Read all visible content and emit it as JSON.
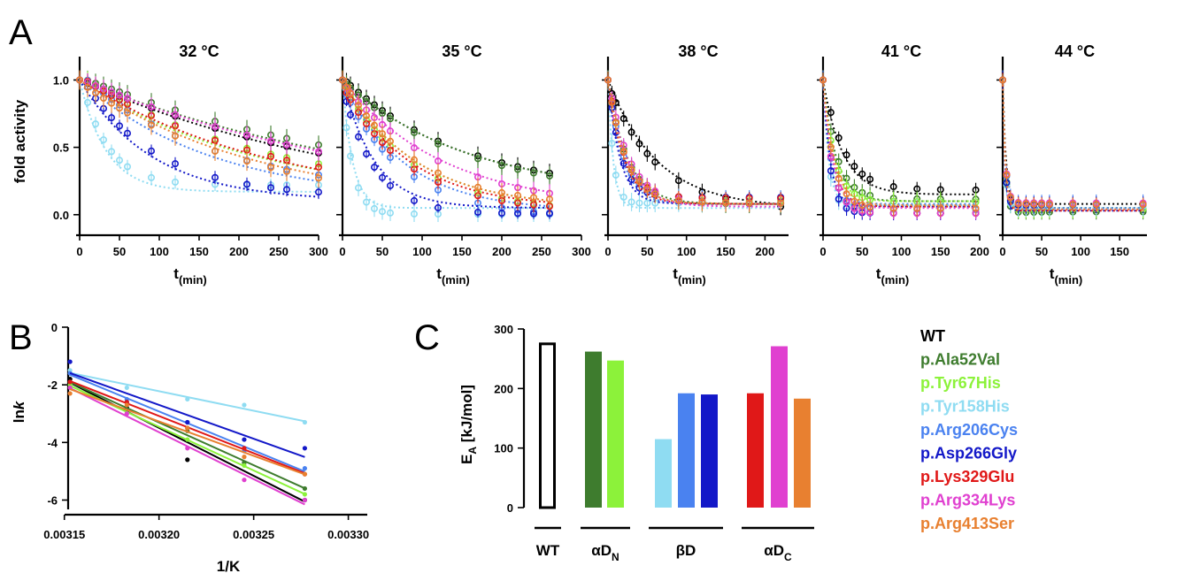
{
  "panel_letters": {
    "a": "A",
    "b": "B",
    "c": "C"
  },
  "legend": [
    {
      "name": "WT",
      "color": "#000000"
    },
    {
      "name": "p.Ala52Val",
      "color": "#3e7c2e"
    },
    {
      "name": "p.Tyr67His",
      "color": "#8cf23a"
    },
    {
      "name": "p.Tyr158His",
      "color": "#8fdcf2"
    },
    {
      "name": "p.Arg206Cys",
      "color": "#4a82f0"
    },
    {
      "name": "p.Asp266Gly",
      "color": "#1318c8"
    },
    {
      "name": "p.Lys329Glu",
      "color": "#e01818"
    },
    {
      "name": "p.Arg334Lys",
      "color": "#e040d0"
    },
    {
      "name": "p.Arg413Ser",
      "color": "#e88030"
    }
  ],
  "chart_data": [
    {
      "panel": "A",
      "type": "scatter",
      "ylabel": "fold activity",
      "xlabel_main": "t",
      "xlabel_sub": "(min)",
      "ylim": [
        -0.1,
        1.2
      ],
      "yticks": [
        0.0,
        0.5,
        1.0
      ],
      "ytick_labels": [
        "0.0",
        "0.5",
        "1.0"
      ],
      "subpanels": [
        {
          "title": "32 °C",
          "xlim": [
            0,
            300
          ],
          "xticks": [
            0,
            50,
            100,
            150,
            200,
            250,
            300
          ],
          "x": [
            0,
            10,
            20,
            30,
            40,
            50,
            60,
            90,
            120,
            170,
            210,
            240,
            260,
            300
          ],
          "fits": [
            {
              "plateau": 0.0,
              "k": 0.0027
            },
            {
              "plateau": 0.0,
              "k": 0.0024
            },
            {
              "plateau": 0.1,
              "k": 0.0045
            },
            {
              "plateau": 0.17,
              "k": 0.03
            },
            {
              "plateau": 0.1,
              "k": 0.006
            },
            {
              "plateau": 0.1,
              "k": 0.011
            },
            {
              "plateau": 0.05,
              "k": 0.004
            },
            {
              "plateau": 0.0,
              "k": 0.0025
            },
            {
              "plateau": 0.05,
              "k": 0.0045
            }
          ]
        },
        {
          "title": "35 °C",
          "xlim": [
            0,
            300
          ],
          "xticks": [
            0,
            50,
            100,
            150,
            200,
            250,
            300
          ],
          "x": [
            0,
            5,
            10,
            20,
            30,
            40,
            50,
            60,
            90,
            120,
            170,
            200,
            220,
            240,
            260
          ],
          "fits": [
            {
              "plateau": 0.15,
              "k": 0.0065
            },
            {
              "plateau": 0.15,
              "k": 0.0065
            },
            {
              "plateau": 0.05,
              "k": 0.011
            },
            {
              "plateau": 0.05,
              "k": 0.08
            },
            {
              "plateau": 0.03,
              "k": 0.013
            },
            {
              "plateau": 0.05,
              "k": 0.025
            },
            {
              "plateau": 0.05,
              "k": 0.012
            },
            {
              "plateau": 0.05,
              "k": 0.008
            },
            {
              "plateau": 0.05,
              "k": 0.011
            }
          ]
        },
        {
          "title": "38 °C",
          "xlim": [
            0,
            230
          ],
          "xticks": [
            0,
            50,
            100,
            150,
            200
          ],
          "x": [
            0,
            5,
            10,
            20,
            30,
            40,
            50,
            60,
            90,
            120,
            150,
            180,
            220
          ],
          "fits": [
            {
              "plateau": 0.05,
              "k": 0.016
            },
            {
              "plateau": 0.08,
              "k": 0.04
            },
            {
              "plateau": 0.08,
              "k": 0.045
            },
            {
              "plateau": 0.05,
              "k": 0.15
            },
            {
              "plateau": 0.08,
              "k": 0.055
            },
            {
              "plateau": 0.08,
              "k": 0.065
            },
            {
              "plateau": 0.08,
              "k": 0.05
            },
            {
              "plateau": 0.06,
              "k": 0.04
            },
            {
              "plateau": 0.08,
              "k": 0.045
            }
          ]
        },
        {
          "title": "41 °C",
          "xlim": [
            0,
            200
          ],
          "xticks": [
            0,
            50,
            100,
            150,
            200
          ],
          "x": [
            0,
            10,
            20,
            30,
            40,
            50,
            60,
            90,
            120,
            150,
            195
          ],
          "fits": [
            {
              "plateau": 0.15,
              "k": 0.04
            },
            {
              "plateau": 0.1,
              "k": 0.06
            },
            {
              "plateau": 0.1,
              "k": 0.07
            },
            {
              "plateau": 0.07,
              "k": 0.14
            },
            {
              "plateau": 0.08,
              "k": 0.09
            },
            {
              "plateau": 0.06,
              "k": 0.11
            },
            {
              "plateau": 0.06,
              "k": 0.08
            },
            {
              "plateau": 0.05,
              "k": 0.08
            },
            {
              "plateau": 0.07,
              "k": 0.07
            }
          ]
        },
        {
          "title": "44 °C",
          "xlim": [
            0,
            185
          ],
          "xticks": [
            0,
            50,
            100,
            150
          ],
          "x": [
            0,
            5,
            10,
            20,
            30,
            40,
            50,
            60,
            90,
            120,
            180
          ],
          "fits": [
            {
              "plateau": 0.08,
              "k": 0.25
            },
            {
              "plateau": 0.05,
              "k": 0.3
            },
            {
              "plateau": 0.05,
              "k": 0.3
            },
            {
              "plateau": 0.05,
              "k": 0.35
            },
            {
              "plateau": 0.05,
              "k": 0.3
            },
            {
              "plateau": 0.03,
              "k": 0.35
            },
            {
              "plateau": 0.03,
              "k": 0.3
            },
            {
              "plateau": 0.04,
              "k": 0.3
            },
            {
              "plateau": 0.04,
              "k": 0.3
            }
          ]
        }
      ]
    },
    {
      "panel": "B",
      "type": "scatter",
      "xlabel": "1/K",
      "ylabel_main": "ln",
      "ylabel_italic": "k",
      "xlim": [
        0.003152,
        0.00331
      ],
      "ylim": [
        -6.2,
        0
      ],
      "xticks": [
        0.00315,
        0.0032,
        0.00325,
        0.0033
      ],
      "xtick_labels": [
        "0.00315",
        "0.00320",
        "0.00325",
        "0.00330"
      ],
      "yticks": [
        0,
        -2,
        -4,
        -6
      ],
      "ytick_labels": [
        "0",
        "-2",
        "-4",
        "-6"
      ],
      "x": [
        0.003153,
        0.003183,
        0.003215,
        0.003245,
        0.003277
      ],
      "series": [
        {
          "y": [
            -1.8,
            -2.8,
            -4.6,
            -4.7,
            -6.0
          ]
        },
        {
          "y": [
            -1.9,
            -2.9,
            -3.6,
            -4.7,
            -5.6
          ]
        },
        {
          "y": [
            -2.0,
            -3.0,
            -3.9,
            -4.8,
            -5.8
          ]
        },
        {
          "y": [
            -1.5,
            -2.1,
            -2.5,
            -2.7,
            -3.3
          ]
        },
        {
          "y": [
            -1.6,
            -2.5,
            -3.3,
            -4.3,
            -4.9
          ]
        },
        {
          "y": [
            -1.2,
            -2.6,
            -3.3,
            -3.9,
            -4.2
          ]
        },
        {
          "y": [
            -1.9,
            -2.6,
            -3.5,
            -4.2,
            -5.1
          ]
        },
        {
          "y": [
            -2.1,
            -3.0,
            -4.2,
            -5.3,
            -6.0
          ]
        },
        {
          "y": [
            -2.3,
            -2.7,
            -3.5,
            -4.5,
            -5.1
          ]
        }
      ]
    },
    {
      "panel": "C",
      "type": "bar",
      "ylabel_main": "E",
      "ylabel_sub": "A",
      "ylabel_rest": " [kJ/mol]",
      "ylim": [
        0,
        300
      ],
      "yticks": [
        0,
        100,
        200,
        300
      ],
      "ytick_labels": [
        "0",
        "100",
        "200",
        "300"
      ],
      "bars": [
        {
          "value": 275
        },
        {
          "value": 262
        },
        {
          "value": 247
        },
        {
          "value": 115
        },
        {
          "value": 192
        },
        {
          "value": 190
        },
        {
          "value": 192
        },
        {
          "value": 271
        },
        {
          "value": 183
        }
      ],
      "groups": [
        {
          "main": "WT",
          "sub": "",
          "bars": [
            0
          ]
        },
        {
          "main": "αD",
          "sub": "N",
          "bars": [
            1,
            2
          ]
        },
        {
          "main": "βD",
          "sub": "",
          "bars": [
            3,
            4,
            5
          ]
        },
        {
          "main": "αD",
          "sub": "C",
          "bars": [
            6,
            7,
            8
          ]
        }
      ]
    }
  ]
}
